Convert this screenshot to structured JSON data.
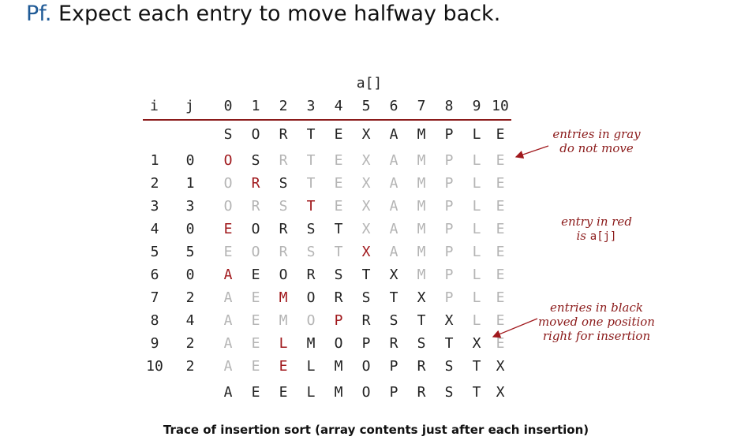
{
  "headline": {
    "prefix": "Pf.",
    "text": "Expect each entry to move halfway back."
  },
  "array_label": "a[]",
  "headers": {
    "i": "i",
    "j": "j",
    "indices": [
      "0",
      "1",
      "2",
      "3",
      "4",
      "5",
      "6",
      "7",
      "8",
      "9",
      "10"
    ]
  },
  "initial_row": [
    "S",
    "O",
    "R",
    "T",
    "E",
    "X",
    "A",
    "M",
    "P",
    "L",
    "E"
  ],
  "trace_rows": [
    {
      "i": "1",
      "j": "0",
      "cells": [
        "O",
        "S",
        "R",
        "T",
        "E",
        "X",
        "A",
        "M",
        "P",
        "L",
        "E"
      ],
      "styles": "RBGGGGGGGGG"
    },
    {
      "i": "2",
      "j": "1",
      "cells": [
        "O",
        "R",
        "S",
        "T",
        "E",
        "X",
        "A",
        "M",
        "P",
        "L",
        "E"
      ],
      "styles": "GRBGGGGGGGG"
    },
    {
      "i": "3",
      "j": "3",
      "cells": [
        "O",
        "R",
        "S",
        "T",
        "E",
        "X",
        "A",
        "M",
        "P",
        "L",
        "E"
      ],
      "styles": "GGGRGGGGGGG"
    },
    {
      "i": "4",
      "j": "0",
      "cells": [
        "E",
        "O",
        "R",
        "S",
        "T",
        "X",
        "A",
        "M",
        "P",
        "L",
        "E"
      ],
      "styles": "RBBBBGGGGGG"
    },
    {
      "i": "5",
      "j": "5",
      "cells": [
        "E",
        "O",
        "R",
        "S",
        "T",
        "X",
        "A",
        "M",
        "P",
        "L",
        "E"
      ],
      "styles": "GGGGGRGGGGG"
    },
    {
      "i": "6",
      "j": "0",
      "cells": [
        "A",
        "E",
        "O",
        "R",
        "S",
        "T",
        "X",
        "M",
        "P",
        "L",
        "E"
      ],
      "styles": "RBBBBBBGGGG"
    },
    {
      "i": "7",
      "j": "2",
      "cells": [
        "A",
        "E",
        "M",
        "O",
        "R",
        "S",
        "T",
        "X",
        "P",
        "L",
        "E"
      ],
      "styles": "GGRBBBBBGGG"
    },
    {
      "i": "8",
      "j": "4",
      "cells": [
        "A",
        "E",
        "M",
        "O",
        "P",
        "R",
        "S",
        "T",
        "X",
        "L",
        "E"
      ],
      "styles": "GGGGRBBBBGG"
    },
    {
      "i": "9",
      "j": "2",
      "cells": [
        "A",
        "E",
        "L",
        "M",
        "O",
        "P",
        "R",
        "S",
        "T",
        "X",
        "E"
      ],
      "styles": "GGRBBBBBBBG"
    },
    {
      "i": "10",
      "j": "2",
      "cells": [
        "A",
        "E",
        "E",
        "L",
        "M",
        "O",
        "P",
        "R",
        "S",
        "T",
        "X"
      ],
      "styles": "GGRBBBBBBBB"
    }
  ],
  "final_row": [
    "A",
    "E",
    "E",
    "L",
    "M",
    "O",
    "P",
    "R",
    "S",
    "T",
    "X"
  ],
  "annotations": {
    "gray": [
      "entries in gray",
      "do not move"
    ],
    "red": [
      "entry in red",
      "is ",
      "a[j]"
    ],
    "black": [
      "entries in black",
      "moved one position",
      "right for insertion"
    ]
  },
  "caption": "Trace of insertion sort (array contents just after each insertion)",
  "colors": {
    "red": "#a0181c",
    "gray": "#b4b4b4",
    "black": "#222222",
    "title_blue": "#1f5a96"
  }
}
